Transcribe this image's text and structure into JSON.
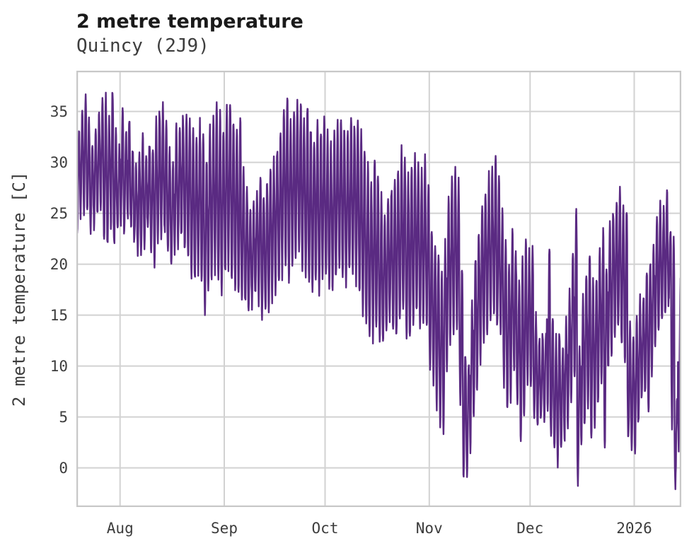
{
  "header": {
    "title": "2 metre temperature",
    "subtitle": "Quincy (2J9)"
  },
  "chart_data": {
    "type": "line",
    "title": "2 metre temperature",
    "subtitle": "Quincy (2J9)",
    "ylabel": "2 metre temperature [C]",
    "xlabel": "",
    "grid": true,
    "legend": "none",
    "line_color": "#5a2a82",
    "grid_color": "#d2d2d2",
    "border_color": "#c8c8c8",
    "ylim": [
      -3.85,
      39.0
    ],
    "y_ticks": [
      0,
      5,
      10,
      15,
      20,
      25,
      30,
      35
    ],
    "x_unit": "days from series start (mid-July) to mid-January; diurnal cycle sampled through each day",
    "days_total": 180,
    "x_ticks": [
      {
        "label": "Aug",
        "day": 13
      },
      {
        "label": "Sep",
        "day": 44
      },
      {
        "label": "Oct",
        "day": 74
      },
      {
        "label": "Nov",
        "day": 105
      },
      {
        "label": "Dec",
        "day": 135
      },
      {
        "label": "2026",
        "day": 166
      }
    ],
    "daily_max": [
      33,
      35,
      36.8,
      34,
      32,
      33.5,
      35,
      36,
      36.3,
      34,
      37.1,
      33,
      31.5,
      35.4,
      33,
      34.5,
      31.5,
      29.5,
      31,
      33,
      30.5,
      32,
      31.5,
      34,
      35.2,
      35.3,
      33.5,
      31,
      30,
      33.5,
      33,
      34.8,
      35.1,
      34.2,
      33,
      32,
      33.8,
      32.5,
      30.2,
      33.5,
      34,
      35.8,
      34.6,
      33.2,
      35.5,
      36,
      34,
      33.5,
      34.5,
      29,
      27.5,
      26,
      25.5,
      27,
      28.5,
      27,
      28,
      29.5,
      30,
      31.5,
      33,
      35,
      36.6,
      34.5,
      35.5,
      36.3,
      35.8,
      34.5,
      35.9,
      33.5,
      32.5,
      34,
      33,
      34.8,
      33,
      31.5,
      32.5,
      34,
      34.5,
      33.5,
      33,
      34.2,
      33.8,
      34.6,
      33,
      31,
      29.5,
      28,
      30.5,
      28.5,
      26.5,
      24.5,
      26,
      27.5,
      28,
      29.5,
      31.5,
      30,
      28.5,
      29.8,
      30.9,
      30.2,
      29,
      30.5,
      28,
      23.5,
      22,
      21,
      19,
      22,
      26.5,
      28.5,
      29.5,
      28,
      20,
      11.5,
      10.5,
      16,
      21,
      23.5,
      26,
      27.5,
      28.5,
      29.3,
      30.7,
      28.5,
      25,
      22.4,
      20,
      23.4,
      21,
      18,
      20.5,
      22.5,
      21,
      22,
      15,
      13,
      13.5,
      13,
      21.9,
      14.5,
      12.5,
      13.5,
      12,
      14.5,
      17.5,
      21,
      25.3,
      12,
      17,
      19.5,
      21,
      18.5,
      19,
      21.5,
      23,
      20,
      24,
      25.5,
      26.5,
      27.2,
      26,
      25.5,
      14,
      12.5,
      14.5,
      16.5,
      17,
      19.5,
      20.5,
      22,
      24.5,
      26,
      25.5,
      27.4,
      23.5,
      23,
      7,
      18.4
    ],
    "daily_min": [
      23,
      24.5,
      25.5,
      25,
      23.5,
      24,
      25,
      25.5,
      22.5,
      22,
      24,
      21.8,
      23,
      24,
      23,
      24.5,
      23.5,
      22,
      21,
      20.8,
      22,
      23,
      21.5,
      20,
      22,
      22.5,
      23,
      21,
      19.5,
      21,
      22,
      22.5,
      21,
      20.5,
      19,
      18.5,
      19.5,
      18,
      15.5,
      17,
      18.5,
      19,
      18,
      17.5,
      19,
      20,
      18.5,
      17.5,
      17,
      16.5,
      16,
      15.5,
      16,
      17,
      16.5,
      15,
      15.2,
      15.5,
      16.5,
      17.5,
      18,
      19,
      20,
      18.5,
      19.5,
      20.5,
      21,
      19.5,
      18.5,
      18,
      17.5,
      18.5,
      17.5,
      19,
      19,
      18,
      17.5,
      18.5,
      19.5,
      18.5,
      18,
      19,
      19.5,
      18.5,
      17,
      15.5,
      14,
      13,
      12.5,
      13.5,
      12.2,
      12,
      13,
      14.5,
      13.5,
      12.5,
      14,
      15.5,
      13,
      12.5,
      14,
      15,
      13.5,
      14.5,
      14,
      10,
      8.5,
      6.2,
      4.2,
      3.8,
      10,
      12,
      13,
      13.8,
      6,
      -1.0,
      -1.2,
      2,
      5,
      7.5,
      10.4,
      12,
      13,
      14,
      15.2,
      13.5,
      13.8,
      8.5,
      5.8,
      7,
      9.7,
      6,
      2.2,
      4.5,
      8,
      8,
      5,
      4.5,
      4.7,
      4.7,
      6,
      3,
      1.5,
      0.5,
      1.5,
      2.5,
      4,
      6,
      9,
      -1.8,
      2,
      4,
      5.5,
      3,
      4.5,
      6,
      8,
      2,
      9.5,
      11,
      13,
      13.5,
      12,
      10,
      2.5,
      1.9,
      2,
      4,
      6.5,
      7,
      5,
      9,
      12,
      13.5,
      14.5,
      15,
      16,
      4,
      -1.5,
      2
    ]
  }
}
